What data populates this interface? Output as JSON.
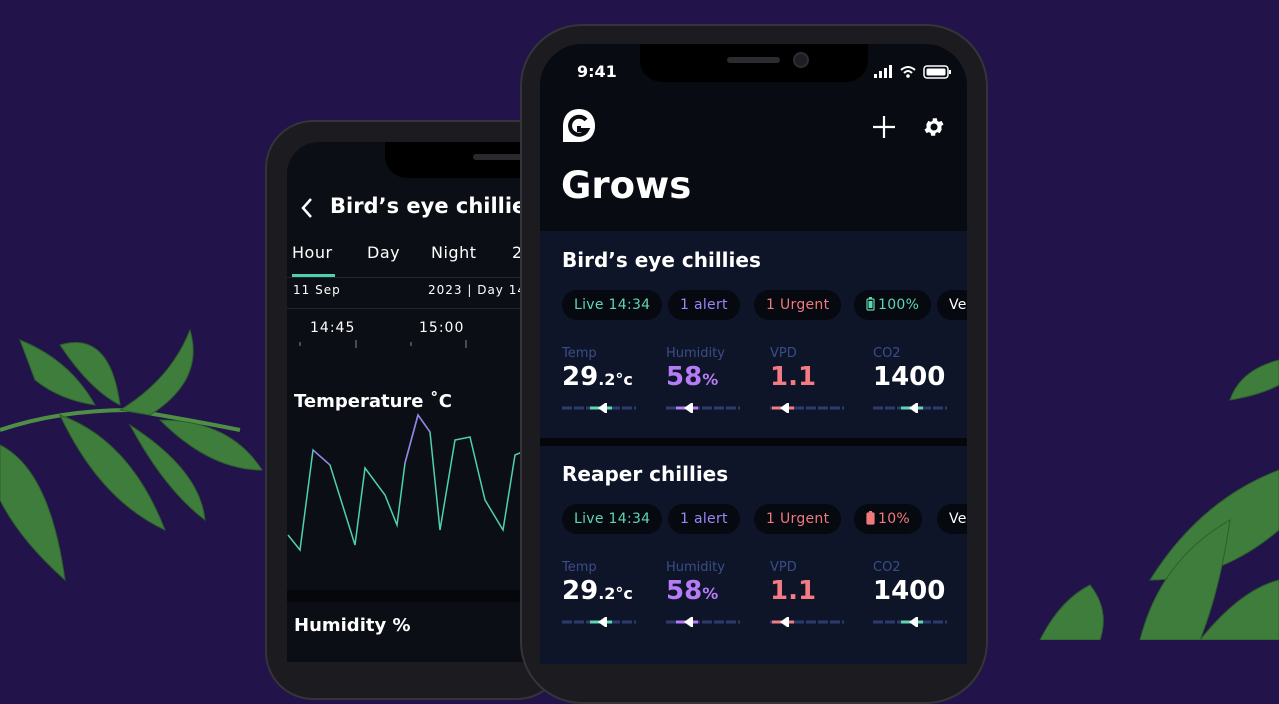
{
  "back_phone": {
    "title": "Bird’s eye chillies",
    "tabs": [
      "Hour",
      "Day",
      "Night",
      "2"
    ],
    "date_left": "11 Sep",
    "date_right": "2023 | Day 14",
    "times": [
      "14:45",
      "15:00"
    ],
    "sections": [
      "Temperature ˚C",
      "Humidity %"
    ]
  },
  "front_phone": {
    "status_time": "9:41",
    "title": "Grows",
    "grows": [
      {
        "name": "Bird’s eye chillies",
        "chips": [
          "Live 14:34",
          "1 alert",
          "1 Urgent",
          "100%",
          "Ve"
        ],
        "metrics": [
          {
            "label": "Temp",
            "value": "29",
            "decimal": ".2",
            "unit": "°c"
          },
          {
            "label": "Humidity",
            "value": "58",
            "unit": "%"
          },
          {
            "label": "VPD",
            "value": "1.1"
          },
          {
            "label": "CO2",
            "value": "1400"
          }
        ]
      },
      {
        "name": "Reaper chillies",
        "chips": [
          "Live 14:34",
          "1 alert",
          "1 Urgent",
          "10%",
          "Veg:"
        ],
        "metrics": [
          {
            "label": "Temp",
            "value": "29",
            "decimal": ".2",
            "unit": "°c"
          },
          {
            "label": "Humidity",
            "value": "58",
            "unit": "%"
          },
          {
            "label": "VPD",
            "value": "1.1"
          },
          {
            "label": "CO2",
            "value": "1400"
          }
        ]
      }
    ]
  }
}
